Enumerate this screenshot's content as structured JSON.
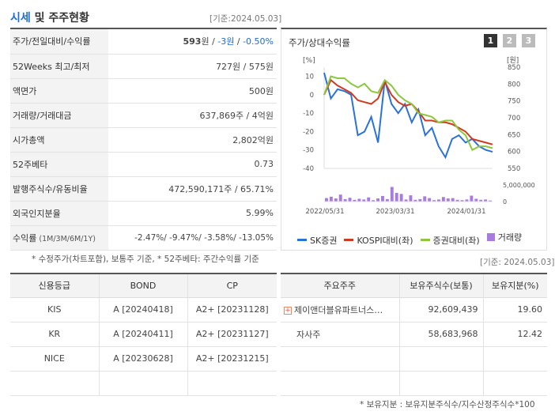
{
  "header": {
    "title_highlight": "시세",
    "title_rest": " 및 주주현황",
    "base_date": "[기준:2024.05.03]"
  },
  "stats": [
    {
      "label": "주가/전일대비/수익률",
      "value_main": "593",
      "unit": "원",
      "sep1": " / ",
      "change": "-3원",
      "sep2": " / ",
      "pct": "-0.50%"
    },
    {
      "label": "52Weeks 최고/최저",
      "value": "727원 / 575원"
    },
    {
      "label": "액면가",
      "value": "500원"
    },
    {
      "label": "거래량/거래대금",
      "value": "637,869주 / 4억원"
    },
    {
      "label": "시가총액",
      "value": "2,802억원"
    },
    {
      "label": "52주베타",
      "value": "0.73"
    },
    {
      "label": "발행주식수/유동비율",
      "value": "472,590,171주 / 65.71%"
    },
    {
      "label": "외국인지분율",
      "value": "5.99%"
    },
    {
      "label": "수익률",
      "label_small": " (1M/3M/6M/1Y)",
      "returns": "-2.47%/ -9.47%/ -3.58%/ -13.05%"
    }
  ],
  "note_left": "* 수정주가(차트포함), 보통주 기준, * 52주베타: 주간수익률 기준",
  "chart_panel": {
    "title": "주가/상대수익률",
    "pages": [
      "1",
      "2",
      "3"
    ],
    "active_page": "1",
    "base_date": "[기준: 2024.05.03]"
  },
  "chart_data": {
    "type": "line",
    "left_axis": {
      "unit": "[%]",
      "ticks": [
        10,
        0,
        -10,
        -20,
        -30,
        -40
      ],
      "range": [
        -40,
        15
      ]
    },
    "right_axis": {
      "unit": "[원]",
      "ticks": [
        850,
        800,
        750,
        700,
        650,
        600,
        550
      ],
      "range": [
        550,
        850
      ]
    },
    "volume_axis": {
      "ticks": [
        "5,000,000",
        "0"
      ],
      "max": 5000000
    },
    "x_ticks": [
      "2022/05/31",
      "2023/03/31",
      "2024/01/31"
    ],
    "series": [
      {
        "name": "SK증권",
        "color": "#2a72d8",
        "values": [
          12,
          -2,
          3,
          2,
          0,
          -22,
          -20,
          -12,
          -26,
          8,
          -5,
          -10,
          -5,
          -15,
          -8,
          -22,
          -18,
          -28,
          -34,
          -24,
          -22,
          -26,
          -24,
          -28,
          -30,
          -31
        ]
      },
      {
        "name": "KOSPI대비(좌)",
        "color": "#d03a22",
        "values": [
          0,
          8,
          5,
          3,
          1,
          -3,
          -4,
          -5,
          -2,
          7,
          0,
          -4,
          -6,
          -5,
          -9,
          -14,
          -14,
          -15,
          -15,
          -16,
          -18,
          -20,
          -24,
          -25,
          -26,
          -27
        ]
      },
      {
        "name": "증권대비(좌)",
        "color": "#8dc63f",
        "values": [
          0,
          10,
          9,
          9,
          6,
          4,
          6,
          2,
          1,
          8,
          5,
          0,
          -3,
          -5,
          -10,
          -11,
          -12,
          -15,
          -14,
          -14,
          -19,
          -22,
          -30,
          -28,
          -28,
          -29
        ]
      },
      {
        "name": "거래량",
        "color": "#a77be0",
        "bars": [
          1.0,
          1.4,
          0.9,
          2.0,
          0.7,
          1.1,
          0.5,
          0.8,
          0.6,
          1.2,
          0.4,
          0.9,
          1.6,
          0.7,
          4.2,
          2.5,
          2.2,
          0.6,
          1.8,
          0.5,
          0.7,
          1.5,
          1.0,
          0.4,
          0.6,
          1.3,
          0.9,
          1.0,
          0.5,
          0.4,
          0.6,
          1.7,
          0.8,
          0.5,
          0.6,
          0.3
        ]
      }
    ],
    "legend": "bottom"
  },
  "credit": {
    "headers": [
      "신용등급",
      "BOND",
      "CP"
    ],
    "rows": [
      [
        "KIS",
        "A  [20240418]",
        "A2+  [20231128]"
      ],
      [
        "KR",
        "A  [20240411]",
        "A2+  [20231127]"
      ],
      [
        "NICE",
        "A  [20230628]",
        "A2+  [20231215]"
      ],
      [
        "",
        "",
        ""
      ]
    ]
  },
  "holders": {
    "headers": [
      "주요주주",
      "보유주식수(보통)",
      "보유지분(%)"
    ],
    "rows": [
      {
        "name": "제이앤더블유파트너스…",
        "shares": "92,609,439",
        "pct": "19.60",
        "icon": "plus-icon"
      },
      {
        "name": "자사주",
        "shares": "58,683,968",
        "pct": "12.42"
      },
      {
        "name": "",
        "shares": "",
        "pct": ""
      },
      {
        "name": "",
        "shares": "",
        "pct": ""
      }
    ]
  },
  "note_bottom": "* 보유지분 : 보유지분주식수/지수산정주식수*100",
  "colors": {
    "accent": "#1f6bcf",
    "negative": "#1f6bcf"
  }
}
